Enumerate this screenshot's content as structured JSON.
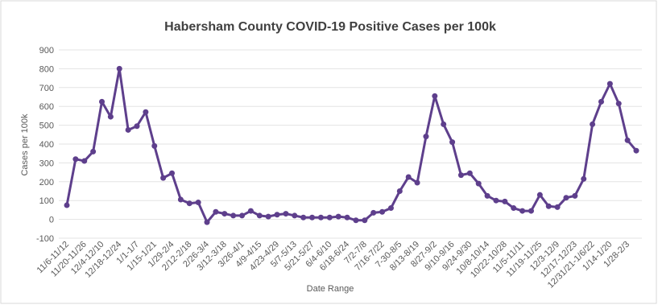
{
  "chart_data": {
    "type": "line",
    "title": "Habersham County COVID-19 Positive Cases per 100k",
    "x_label": "Date Range",
    "y_label": "Cases per 100k",
    "categories": [
      "11/6-11/12",
      null,
      "11/20-11/26",
      null,
      "12/4-12/10",
      null,
      "12/18-12/24",
      null,
      "1/1-1/7",
      null,
      "1/15-1/21",
      null,
      "1/29-2/4",
      null,
      "2/12-2/18",
      null,
      "2/26-3/4",
      null,
      "3/12-3/18",
      null,
      "3/26-4/1",
      null,
      "4/9-4/15",
      null,
      "4/23-4/29",
      null,
      "5/7-5/13",
      null,
      "5/21-5/27",
      null,
      "6/4-6/10",
      null,
      "6/18-6/24",
      null,
      "7/2-7/8",
      null,
      "7/16-7/22",
      null,
      "7-30-8/5",
      null,
      "8/13-8/19",
      null,
      "8/27-9/2",
      null,
      "9/10-9/16",
      null,
      "9/24-9/30",
      null,
      "10/8-10/14",
      null,
      "10/22-10/28",
      null,
      "11/5-11/11",
      null,
      "11/19-11/25",
      null,
      "12/3-12/9",
      null,
      "12/17-12/23",
      null,
      "12/31/21-1/6/22",
      null,
      "1/14-1/20",
      null,
      "1/28-2/3",
      null
    ],
    "series": [
      {
        "name": "Cases per 100k",
        "color": "#5e3f8c",
        "values": [
          75,
          320,
          310,
          360,
          625,
          545,
          800,
          475,
          495,
          570,
          390,
          220,
          245,
          105,
          85,
          90,
          -15,
          40,
          30,
          20,
          20,
          45,
          20,
          15,
          25,
          30,
          20,
          10,
          10,
          10,
          10,
          15,
          10,
          -5,
          -5,
          35,
          40,
          60,
          150,
          225,
          195,
          440,
          655,
          505,
          410,
          235,
          245,
          190,
          125,
          100,
          95,
          60,
          45,
          45,
          130,
          70,
          65,
          115,
          125,
          215,
          505,
          625,
          720,
          615,
          420,
          365
        ]
      }
    ],
    "ylim": [
      -100,
      900
    ],
    "yticks": [
      -100,
      0,
      100,
      200,
      300,
      400,
      500,
      600,
      700,
      800,
      900
    ],
    "grid": true
  }
}
